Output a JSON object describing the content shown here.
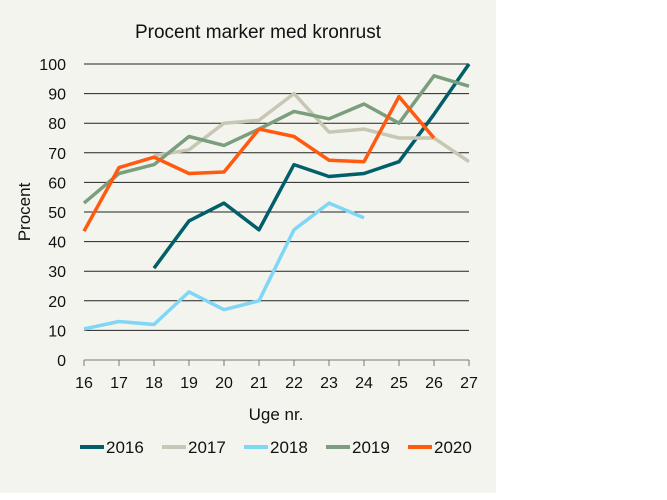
{
  "chart_data": {
    "type": "line",
    "title": "Procent marker med kronrust",
    "xlabel": "Uge nr.",
    "ylabel": "Procent",
    "x": [
      16,
      17,
      18,
      19,
      20,
      21,
      22,
      23,
      24,
      25,
      26,
      27
    ],
    "ylim": [
      0,
      100
    ],
    "yticks": [
      0,
      10,
      20,
      30,
      40,
      50,
      60,
      70,
      80,
      90,
      100
    ],
    "grid": true,
    "legend": "bottom",
    "series": [
      {
        "name": "2016",
        "color": "#005f6a",
        "values": [
          null,
          null,
          31,
          47,
          53,
          44,
          66,
          62,
          63,
          67,
          83,
          100
        ]
      },
      {
        "name": "2017",
        "color": "#c8c6b4",
        "values": [
          null,
          null,
          69,
          71,
          80,
          81,
          90,
          77,
          78,
          75,
          75,
          67
        ]
      },
      {
        "name": "2018",
        "color": "#7fd6f5",
        "values": [
          10.5,
          13,
          12,
          23,
          17,
          20,
          44,
          53,
          48,
          null,
          null,
          null
        ]
      },
      {
        "name": "2019",
        "color": "#7a9e7e",
        "values": [
          53,
          63,
          66,
          75.5,
          72.5,
          78,
          84,
          81.5,
          86.5,
          80,
          96,
          92.5
        ]
      },
      {
        "name": "2020",
        "color": "#ff5a0f",
        "values": [
          43.5,
          65,
          68.5,
          63,
          63.5,
          78,
          75.5,
          67.5,
          67,
          89,
          75,
          null
        ]
      }
    ]
  }
}
